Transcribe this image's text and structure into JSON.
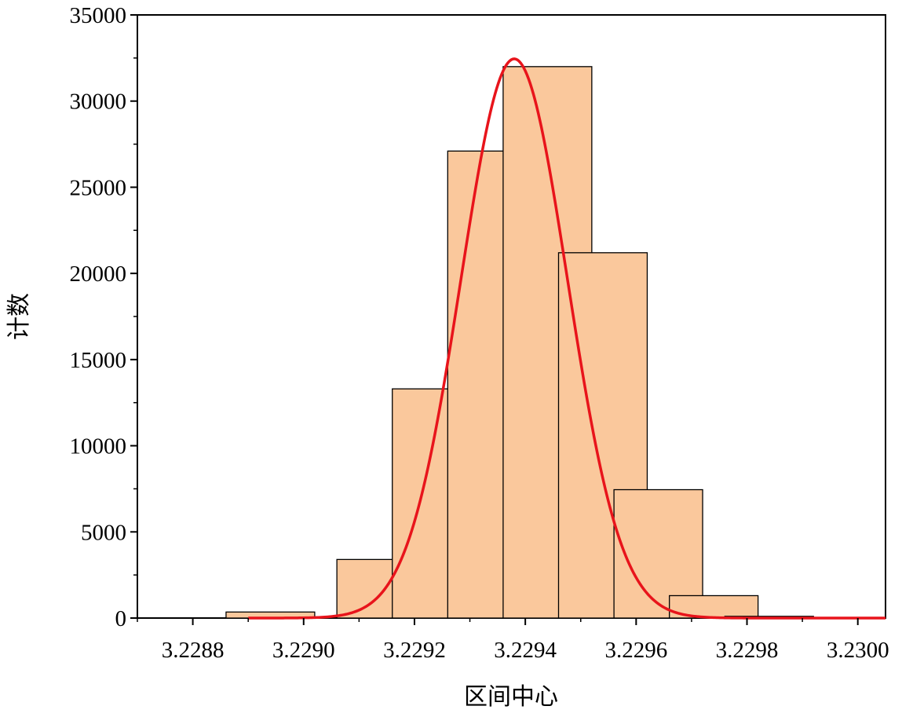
{
  "chart_data": {
    "type": "bar",
    "title": "",
    "xlabel": "区间中心",
    "ylabel": "计数",
    "xlim": [
      3.2287,
      3.23005
    ],
    "ylim": [
      0,
      35000
    ],
    "x_ticks": [
      {
        "value": 3.2288,
        "label": "3.2288"
      },
      {
        "value": 3.229,
        "label": "3.2290"
      },
      {
        "value": 3.2292,
        "label": "3.2292"
      },
      {
        "value": 3.2294,
        "label": "3.2294"
      },
      {
        "value": 3.2296,
        "label": "3.2296"
      },
      {
        "value": 3.2298,
        "label": "3.2298"
      },
      {
        "value": 3.23,
        "label": "3.2300"
      }
    ],
    "y_ticks": [
      {
        "value": 0,
        "label": "0"
      },
      {
        "value": 5000,
        "label": "5000"
      },
      {
        "value": 10000,
        "label": "10000"
      },
      {
        "value": 15000,
        "label": "15000"
      },
      {
        "value": 20000,
        "label": "20000"
      },
      {
        "value": 25000,
        "label": "25000"
      },
      {
        "value": 30000,
        "label": "30000"
      },
      {
        "value": 35000,
        "label": "35000"
      }
    ],
    "bin_width": 0.0002,
    "bars": [
      {
        "x": 3.22894,
        "value": 350
      },
      {
        "x": 3.22914,
        "value": 3400
      },
      {
        "x": 3.22924,
        "value": 13300
      },
      {
        "x": 3.22934,
        "value": 27100
      },
      {
        "x": 3.22944,
        "value": 32000
      },
      {
        "x": 3.22954,
        "value": 21200
      },
      {
        "x": 3.22964,
        "value": 7450
      },
      {
        "x": 3.22974,
        "value": 1300
      },
      {
        "x": 3.22984,
        "value": 100
      }
    ],
    "fit_curve": {
      "type": "gaussian",
      "mean": 3.22938,
      "sigma": 9.6e-05,
      "peak": 32450
    },
    "grid": false,
    "colors": {
      "bar_fill": "#FAC89C",
      "bar_stroke": "#000000",
      "curve": "#E8141B",
      "axis": "#000000"
    }
  }
}
